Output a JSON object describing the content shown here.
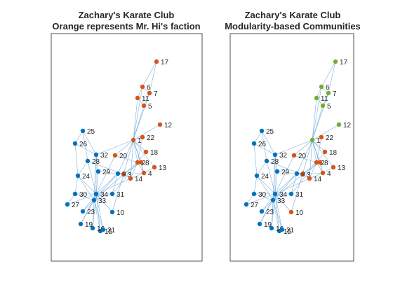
{
  "figure": {
    "panels": [
      {
        "title_line1": "Zachary's Karate Club",
        "title_line2": "Orange represents Mr. Hi's faction",
        "groups": {
          "blue": [
            9,
            10,
            15,
            16,
            19,
            21,
            23,
            24,
            25,
            26,
            27,
            28,
            29,
            30,
            31,
            32,
            33,
            34
          ],
          "orange": [
            1,
            2,
            3,
            4,
            5,
            6,
            7,
            8,
            11,
            12,
            13,
            14,
            17,
            18,
            20,
            22
          ]
        }
      },
      {
        "title_line1": "Zachary's Karate Club",
        "title_line2": "Modularity-based Communities",
        "groups": {
          "blue": [
            9,
            15,
            16,
            19,
            21,
            23,
            24,
            25,
            26,
            27,
            28,
            29,
            30,
            31,
            32,
            33,
            34
          ],
          "orange": [
            2,
            3,
            4,
            8,
            10,
            13,
            14,
            18,
            20,
            22
          ],
          "green": [
            1,
            5,
            6,
            7,
            11,
            12,
            17
          ]
        }
      }
    ],
    "colors": {
      "blue": "#0072bd",
      "orange": "#d95319",
      "green": "#77ac30",
      "edge": "#6ea8d8"
    },
    "nodes": [
      {
        "id": 1,
        "label": "1"
      },
      {
        "id": 2,
        "label": "2"
      },
      {
        "id": 3,
        "label": "3"
      },
      {
        "id": 4,
        "label": "4"
      },
      {
        "id": 5,
        "label": "5"
      },
      {
        "id": 6,
        "label": "6"
      },
      {
        "id": 7,
        "label": "7"
      },
      {
        "id": 8,
        "label": "8"
      },
      {
        "id": 9,
        "label": "9"
      },
      {
        "id": 10,
        "label": "10"
      },
      {
        "id": 11,
        "label": "11"
      },
      {
        "id": 12,
        "label": "12"
      },
      {
        "id": 13,
        "label": "13"
      },
      {
        "id": 14,
        "label": "14"
      },
      {
        "id": 15,
        "label": "15"
      },
      {
        "id": 16,
        "label": "16"
      },
      {
        "id": 17,
        "label": "17"
      },
      {
        "id": 18,
        "label": "18"
      },
      {
        "id": 19,
        "label": "19"
      },
      {
        "id": 20,
        "label": "20"
      },
      {
        "id": 21,
        "label": "21"
      },
      {
        "id": 22,
        "label": "22"
      },
      {
        "id": 23,
        "label": "23"
      },
      {
        "id": 24,
        "label": "24"
      },
      {
        "id": 25,
        "label": "25"
      },
      {
        "id": 26,
        "label": "26"
      },
      {
        "id": 27,
        "label": "27"
      },
      {
        "id": 28,
        "label": "28"
      },
      {
        "id": 29,
        "label": "29"
      },
      {
        "id": 30,
        "label": "30"
      },
      {
        "id": 31,
        "label": "31"
      },
      {
        "id": 32,
        "label": "32"
      },
      {
        "id": 33,
        "label": "33"
      },
      {
        "id": 34,
        "label": "34"
      }
    ],
    "edges": [
      [
        1,
        2
      ],
      [
        1,
        3
      ],
      [
        1,
        4
      ],
      [
        1,
        5
      ],
      [
        1,
        6
      ],
      [
        1,
        7
      ],
      [
        1,
        8
      ],
      [
        1,
        9
      ],
      [
        1,
        11
      ],
      [
        1,
        12
      ],
      [
        1,
        13
      ],
      [
        1,
        14
      ],
      [
        1,
        18
      ],
      [
        1,
        20
      ],
      [
        1,
        22
      ],
      [
        1,
        32
      ],
      [
        2,
        3
      ],
      [
        2,
        4
      ],
      [
        2,
        8
      ],
      [
        2,
        14
      ],
      [
        2,
        18
      ],
      [
        2,
        20
      ],
      [
        2,
        22
      ],
      [
        2,
        31
      ],
      [
        3,
        4
      ],
      [
        3,
        8
      ],
      [
        3,
        9
      ],
      [
        3,
        10
      ],
      [
        3,
        14
      ],
      [
        3,
        28
      ],
      [
        3,
        29
      ],
      [
        3,
        33
      ],
      [
        4,
        8
      ],
      [
        4,
        13
      ],
      [
        4,
        14
      ],
      [
        5,
        7
      ],
      [
        5,
        11
      ],
      [
        6,
        7
      ],
      [
        6,
        11
      ],
      [
        6,
        17
      ],
      [
        7,
        17
      ],
      [
        9,
        31
      ],
      [
        9,
        33
      ],
      [
        9,
        34
      ],
      [
        10,
        34
      ],
      [
        14,
        34
      ],
      [
        15,
        33
      ],
      [
        15,
        34
      ],
      [
        16,
        33
      ],
      [
        16,
        34
      ],
      [
        19,
        33
      ],
      [
        19,
        34
      ],
      [
        20,
        34
      ],
      [
        21,
        33
      ],
      [
        21,
        34
      ],
      [
        23,
        33
      ],
      [
        23,
        34
      ],
      [
        24,
        26
      ],
      [
        24,
        28
      ],
      [
        24,
        30
      ],
      [
        24,
        33
      ],
      [
        24,
        34
      ],
      [
        25,
        26
      ],
      [
        25,
        28
      ],
      [
        25,
        32
      ],
      [
        26,
        32
      ],
      [
        27,
        30
      ],
      [
        27,
        34
      ],
      [
        28,
        34
      ],
      [
        29,
        32
      ],
      [
        29,
        34
      ],
      [
        30,
        33
      ],
      [
        30,
        34
      ],
      [
        31,
        33
      ],
      [
        31,
        34
      ],
      [
        32,
        33
      ],
      [
        32,
        34
      ],
      [
        33,
        34
      ]
    ]
  }
}
